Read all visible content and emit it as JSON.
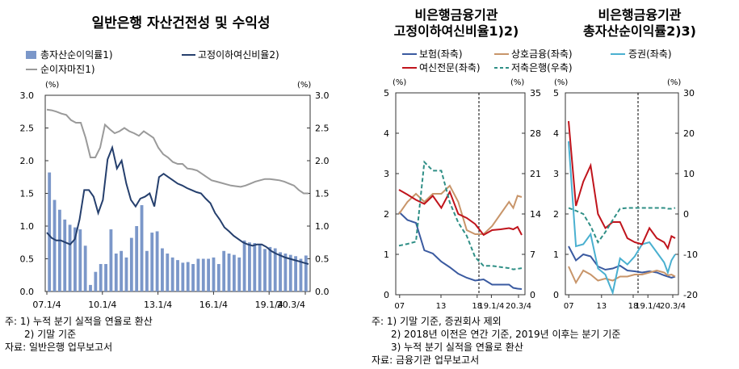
{
  "colors": {
    "bar": "#7b97c9",
    "navy": "#253f6d",
    "gray": "#9a9a9a",
    "insurance_blue": "#3a5aa0",
    "coop_orange": "#c8956a",
    "securities_cyan": "#4ab0d0",
    "credit_red": "#c0141c",
    "savings_teal": "#2f8f86"
  },
  "chart_data": [
    {
      "type": "bar+line",
      "title": "일반은행 자산건전성 및 수익성",
      "y_left": {
        "unit": "(%)",
        "ticks": [
          "0.0",
          "0.5",
          "1.0",
          "1.5",
          "2.0",
          "2.5",
          "3.0"
        ],
        "lim": [
          0,
          3
        ]
      },
      "y_right": {
        "unit": "(%)",
        "ticks": [
          "0.0",
          "0.5",
          "1.0",
          "1.5",
          "2.0",
          "2.5",
          "3.0"
        ],
        "lim": [
          0,
          3
        ]
      },
      "x_ticks": [
        "07.1/4",
        "10.1/4",
        "13.1/4",
        "16.1/4",
        "19.1/4",
        "20.3/4"
      ],
      "legend": [
        "총자산순이익률1)",
        "고정이하여신비율2)",
        "순이자마진1)"
      ],
      "series": [
        {
          "name": "총자산순이익률1)",
          "kind": "bar",
          "values": [
            1.82,
            1.4,
            1.25,
            1.1,
            1.02,
            0.98,
            0.95,
            0.7,
            0.1,
            0.3,
            0.42,
            0.42,
            0.95,
            0.58,
            0.62,
            0.52,
            0.82,
            1.0,
            1.32,
            0.62,
            0.9,
            0.92,
            0.66,
            0.58,
            0.52,
            0.48,
            0.44,
            0.45,
            0.42,
            0.5,
            0.5,
            0.5,
            0.52,
            0.42,
            0.62,
            0.58,
            0.56,
            0.52,
            0.78,
            0.75,
            0.74,
            0.72,
            0.65,
            0.68,
            0.66,
            0.6,
            0.58,
            0.56,
            0.54,
            0.5,
            0.55
          ]
        },
        {
          "name": "고정이하여신비율2)",
          "kind": "line",
          "values": [
            0.9,
            0.82,
            0.78,
            0.78,
            0.75,
            0.72,
            0.8,
            1.1,
            1.55,
            1.55,
            1.45,
            1.2,
            1.4,
            2.02,
            2.2,
            1.88,
            2.0,
            1.65,
            1.4,
            1.3,
            1.42,
            1.45,
            1.5,
            1.3,
            1.75,
            1.8,
            1.75,
            1.7,
            1.65,
            1.62,
            1.58,
            1.55,
            1.52,
            1.5,
            1.42,
            1.35,
            1.2,
            1.1,
            0.98,
            0.92,
            0.85,
            0.8,
            0.75,
            0.72,
            0.7,
            0.72,
            0.72,
            0.68,
            0.62,
            0.58,
            0.55,
            0.52,
            0.5,
            0.48,
            0.46,
            0.44,
            0.42
          ]
        },
        {
          "name": "순이자마진1)",
          "kind": "line",
          "values": [
            2.78,
            2.77,
            2.75,
            2.72,
            2.7,
            2.62,
            2.58,
            2.58,
            2.35,
            2.05,
            2.05,
            2.2,
            2.55,
            2.48,
            2.42,
            2.45,
            2.5,
            2.45,
            2.42,
            2.38,
            2.45,
            2.4,
            2.35,
            2.2,
            2.1,
            2.05,
            1.98,
            1.95,
            1.95,
            1.88,
            1.87,
            1.85,
            1.8,
            1.75,
            1.7,
            1.68,
            1.66,
            1.64,
            1.62,
            1.61,
            1.6,
            1.62,
            1.65,
            1.68,
            1.7,
            1.72,
            1.72,
            1.71,
            1.7,
            1.68,
            1.65,
            1.62,
            1.55,
            1.5,
            1.5
          ]
        }
      ],
      "notes": [
        "주: 1) 누적 분기 실적을 연율로 환산",
        "2) 기말 기준",
        "자료: 일반은행 업무보고서"
      ]
    },
    {
      "type": "line",
      "title": [
        "비은행금융기관",
        "고정이하여신비율1)2)"
      ],
      "y_left": {
        "unit": "(%)",
        "ticks": [
          "0",
          "1",
          "2",
          "3",
          "4",
          "5"
        ],
        "lim": [
          0,
          5
        ]
      },
      "y_right": {
        "unit": "(%)",
        "ticks": [
          "0",
          "7",
          "14",
          "21",
          "28",
          "35"
        ],
        "lim": [
          0,
          35
        ]
      },
      "x_ticks": [
        "07",
        "13",
        "18",
        "19.1/4",
        "20.3/4"
      ],
      "legend": [
        "보험(좌축)",
        "상호금융(좌축)",
        "여신전문(좌축)",
        "저축은행(우축)"
      ],
      "series": [
        {
          "name": "보험(좌축)",
          "axis": "left",
          "x": [
            2007,
            2008,
            2009,
            2010,
            2011,
            2012,
            2013,
            2014,
            2015,
            2016,
            2017,
            2018,
            2019,
            2020,
            2020.5,
            2021,
            2021.5
          ],
          "values": [
            2.05,
            1.85,
            1.78,
            1.1,
            1.02,
            0.82,
            0.68,
            0.52,
            0.42,
            0.35,
            0.38,
            0.25,
            0.25,
            0.25,
            0.17,
            0.15,
            0.14
          ]
        },
        {
          "name": "상호금융(좌축)",
          "axis": "left",
          "x": [
            2007,
            2008,
            2009,
            2010,
            2011,
            2012,
            2013,
            2014,
            2015,
            2016,
            2017,
            2018,
            2019,
            2020,
            2020.5,
            2021,
            2021.5
          ],
          "values": [
            2.0,
            2.3,
            2.5,
            2.3,
            2.5,
            2.5,
            2.7,
            2.3,
            1.6,
            1.5,
            1.5,
            1.7,
            2.0,
            2.3,
            2.15,
            2.45,
            2.42
          ]
        },
        {
          "name": "여신전문(좌축)",
          "axis": "left",
          "x": [
            2007,
            2008,
            2009,
            2010,
            2011,
            2012,
            2013,
            2014,
            2015,
            2016,
            2017,
            2018,
            2019,
            2020,
            2020.5,
            2021,
            2021.5
          ],
          "values": [
            2.6,
            2.48,
            2.35,
            2.25,
            2.45,
            2.15,
            2.55,
            2.0,
            1.9,
            1.75,
            1.48,
            1.6,
            1.62,
            1.65,
            1.62,
            1.68,
            1.48
          ]
        },
        {
          "name": "저축은행(우축)",
          "axis": "right",
          "x": [
            2007,
            2008,
            2009,
            2010,
            2011,
            2012,
            2013,
            2014,
            2015,
            2016,
            2017,
            2018,
            2019,
            2020,
            2020.5,
            2021,
            2021.5
          ],
          "values": [
            8.5,
            8.8,
            9.2,
            23.0,
            21.5,
            21.5,
            16.0,
            12.5,
            10.2,
            6.5,
            5.0,
            5.0,
            4.8,
            4.6,
            4.4,
            4.5,
            4.6
          ]
        }
      ],
      "notes": [
        "주: 1) 기말 기준, 증권회사 제외",
        "2) 2018년 이전은 연간 기준, 2019년 이후는 분기 기준",
        "3) 누적 분기 실적을 연율로 환산",
        "자료: 금융기관 업무보고서"
      ]
    },
    {
      "type": "line",
      "title": [
        "비은행금융기관",
        "총자산순이익률2)3)"
      ],
      "y_left": {
        "unit": "(%)",
        "ticks": [
          "0",
          "1",
          "2",
          "3",
          "4",
          "5"
        ],
        "lim": [
          0,
          5
        ]
      },
      "y_right": {
        "unit": "(%)",
        "ticks": [
          "-20",
          "-10",
          "0",
          "10",
          "20",
          "30"
        ],
        "lim": [
          -20,
          30
        ]
      },
      "x_ticks": [
        "07",
        "13",
        "18",
        "19.1/4",
        "20.3/4"
      ],
      "legend": [
        "증권(좌축)"
      ],
      "series": [
        {
          "name": "보험(좌축)",
          "axis": "left",
          "x": [
            2007,
            2008,
            2009,
            2010,
            2011,
            2012,
            2013,
            2014,
            2015,
            2016,
            2017,
            2018,
            2019,
            2020,
            2020.5,
            2021,
            2021.5
          ],
          "values": [
            1.2,
            0.85,
            1.0,
            0.95,
            0.7,
            0.62,
            0.65,
            0.72,
            0.6,
            0.58,
            0.55,
            0.58,
            0.55,
            0.48,
            0.45,
            0.42,
            0.45
          ]
        },
        {
          "name": "상호금융(좌축)",
          "axis": "left",
          "x": [
            2007,
            2008,
            2009,
            2010,
            2011,
            2012,
            2013,
            2014,
            2015,
            2016,
            2017,
            2018,
            2019,
            2020,
            2020.5,
            2021,
            2021.5
          ],
          "values": [
            0.7,
            0.3,
            0.6,
            0.5,
            0.35,
            0.4,
            0.35,
            0.45,
            0.45,
            0.5,
            0.5,
            0.55,
            0.6,
            0.55,
            0.48,
            0.5,
            0.45
          ]
        },
        {
          "name": "증권(좌축)",
          "axis": "left",
          "x": [
            2007,
            2008,
            2009,
            2010,
            2011,
            2012,
            2013,
            2014,
            2015,
            2016,
            2017,
            2018,
            2019,
            2020,
            2020.5,
            2021,
            2021.5
          ],
          "values": [
            3.8,
            1.2,
            1.25,
            1.5,
            0.65,
            0.5,
            0.05,
            0.9,
            0.75,
            0.95,
            1.25,
            1.3,
            1.05,
            0.8,
            0.55,
            0.85,
            1.0
          ]
        },
        {
          "name": "여신전문(좌축)",
          "axis": "left",
          "x": [
            2007,
            2008,
            2009,
            2010,
            2011,
            2012,
            2013,
            2014,
            2015,
            2016,
            2017,
            2018,
            2019,
            2020,
            2020.5,
            2021,
            2021.5
          ],
          "values": [
            4.3,
            2.2,
            2.8,
            3.2,
            2.0,
            1.65,
            1.8,
            1.8,
            1.4,
            1.3,
            1.25,
            1.65,
            1.4,
            1.3,
            1.15,
            1.45,
            1.4
          ]
        },
        {
          "name": "저축은행(우축)",
          "axis": "right",
          "x": [
            2007,
            2008,
            2009,
            2010,
            2011,
            2012,
            2013,
            2014,
            2015,
            2016,
            2017,
            2018,
            2019,
            2020,
            2020.5,
            2021,
            2021.5
          ],
          "values": [
            1.5,
            0.8,
            0.0,
            -3.0,
            -7.0,
            -4.5,
            -1.5,
            1.3,
            1.5,
            1.5,
            1.5,
            1.5,
            1.5,
            1.5,
            1.3,
            1.3,
            1.5
          ]
        }
      ]
    }
  ]
}
